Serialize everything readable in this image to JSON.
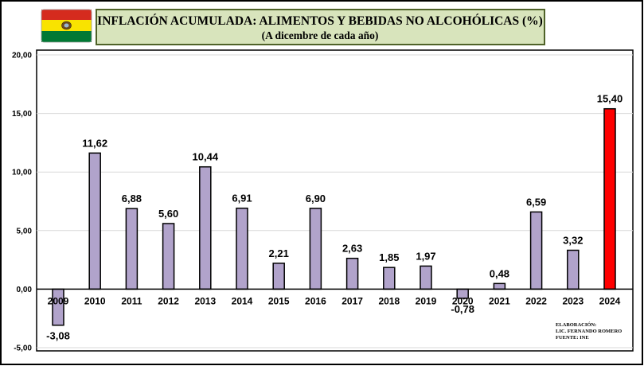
{
  "header": {
    "title": "INFLACIÓN ACUMULADA: ALIMENTOS Y BEBIDAS NO ALCOHÓLICAS (%)",
    "subtitle": "(A dicembre de cada año)"
  },
  "flag": {
    "icon": "bolivia-flag-icon",
    "colors": [
      "#d52b1e",
      "#f9e300",
      "#007934"
    ]
  },
  "credits": {
    "line1": "ELABORACIÓN:",
    "line2": "LIC. FERNANDO ROMERO",
    "line3": "FUENTE: INE"
  },
  "colors": {
    "bar": "#b1a3cb",
    "highlight": "#ff0000",
    "bar_stroke": "#000000",
    "grid": "#d9d9d9",
    "title_box_bg": "#d8e4bc",
    "title_box_border": "#4f6228"
  },
  "chart_data": {
    "type": "bar",
    "title": "INFLACIÓN ACUMULADA: ALIMENTOS Y BEBIDAS NO ALCOHÓLICAS (%)",
    "subtitle": "(A dicembre de cada año)",
    "xlabel": "",
    "ylabel": "",
    "categories": [
      "2009",
      "2010",
      "2011",
      "2012",
      "2013",
      "2014",
      "2015",
      "2016",
      "2017",
      "2018",
      "2019",
      "2020",
      "2021",
      "2022",
      "2023",
      "2024"
    ],
    "values": [
      -3.08,
      11.62,
      6.88,
      5.6,
      10.44,
      6.91,
      2.21,
      6.9,
      2.63,
      1.85,
      1.97,
      -0.78,
      0.48,
      6.59,
      3.32,
      15.4
    ],
    "value_labels": [
      "-3,08",
      "11,62",
      "6,88",
      "5,60",
      "10,44",
      "6,91",
      "2,21",
      "6,90",
      "2,63",
      "1,85",
      "1,97",
      "-0,78",
      "0,48",
      "6,59",
      "3,32",
      "15,40"
    ],
    "highlight_categories": [
      "2024"
    ],
    "ylim": [
      -5,
      20
    ],
    "yticks": [
      -5,
      0,
      5,
      10,
      15,
      20
    ],
    "ytick_labels": [
      "-5,00",
      "0,00",
      "5,00",
      "10,00",
      "15,00",
      "20,00"
    ],
    "grid": true,
    "legend": "none"
  }
}
